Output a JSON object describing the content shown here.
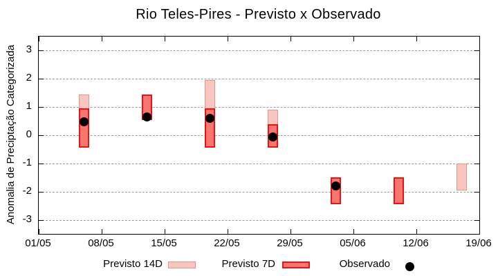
{
  "chart_data": {
    "type": "bar",
    "title": "Rio Teles-Pires - Previsto x Observado",
    "ylabel": "Anomalia de Preciptação Categorizada",
    "xlabel": "",
    "ylim": [
      -3.5,
      3.5
    ],
    "yticks": [
      3,
      2,
      1,
      0,
      -1,
      -2,
      -3
    ],
    "x_range_days": [
      0,
      49
    ],
    "xtick_days": [
      0,
      7,
      14,
      21,
      28,
      35,
      42,
      49
    ],
    "xtick_labels": [
      "01/05",
      "08/05",
      "15/05",
      "22/05",
      "29/05",
      "05/06",
      "12/06",
      "19/06"
    ],
    "grid": "horizontal-dashed",
    "legend_position": "bottom",
    "series": [
      {
        "name": "Previsto 14D",
        "type": "range_bar",
        "fill": "#f8c6c0",
        "border": "#ef9184",
        "points": [
          {
            "date": "06/05",
            "day": 5,
            "low": -0.45,
            "high": 1.45
          },
          {
            "date": "20/05",
            "day": 19,
            "low": -0.45,
            "high": 1.95
          },
          {
            "date": "27/05",
            "day": 26,
            "low": -0.45,
            "high": 0.9
          },
          {
            "date": "17/06",
            "day": 47,
            "low": -1.95,
            "high": -1.0
          }
        ]
      },
      {
        "name": "Previsto 7D",
        "type": "range_bar",
        "fill": "#f8766d",
        "border": "#e81414",
        "points": [
          {
            "date": "06/05",
            "day": 5,
            "low": -0.45,
            "high": 0.95
          },
          {
            "date": "13/05",
            "day": 12,
            "low": 0.55,
            "high": 1.45
          },
          {
            "date": "20/05",
            "day": 19,
            "low": -0.45,
            "high": 0.95
          },
          {
            "date": "27/05",
            "day": 26,
            "low": -0.45,
            "high": 0.4
          },
          {
            "date": "03/06",
            "day": 33,
            "low": -2.45,
            "high": -1.5
          },
          {
            "date": "10/06",
            "day": 40,
            "low": -2.45,
            "high": -1.5
          }
        ]
      },
      {
        "name": "Observado",
        "type": "scatter",
        "color": "#000000",
        "points": [
          {
            "date": "06/05",
            "day": 5,
            "value": 0.48
          },
          {
            "date": "13/05",
            "day": 12,
            "value": 0.64
          },
          {
            "date": "20/05",
            "day": 19,
            "value": 0.6
          },
          {
            "date": "27/05",
            "day": 26,
            "value": -0.05
          },
          {
            "date": "03/06",
            "day": 33,
            "value": -1.8
          }
        ]
      }
    ]
  },
  "legend": [
    {
      "label": "Previsto 14D"
    },
    {
      "label": "Previsto 7D"
    },
    {
      "label": "Observado"
    }
  ],
  "colors": {
    "previsto_14d_fill": "#f8c6c0",
    "previsto_14d_border": "#ef9184",
    "previsto_7d_fill": "#f8766d",
    "previsto_7d_border": "#e81414",
    "observado": "#000000",
    "grid": "#999999",
    "axis": "#000000",
    "background": "#ffffff"
  }
}
